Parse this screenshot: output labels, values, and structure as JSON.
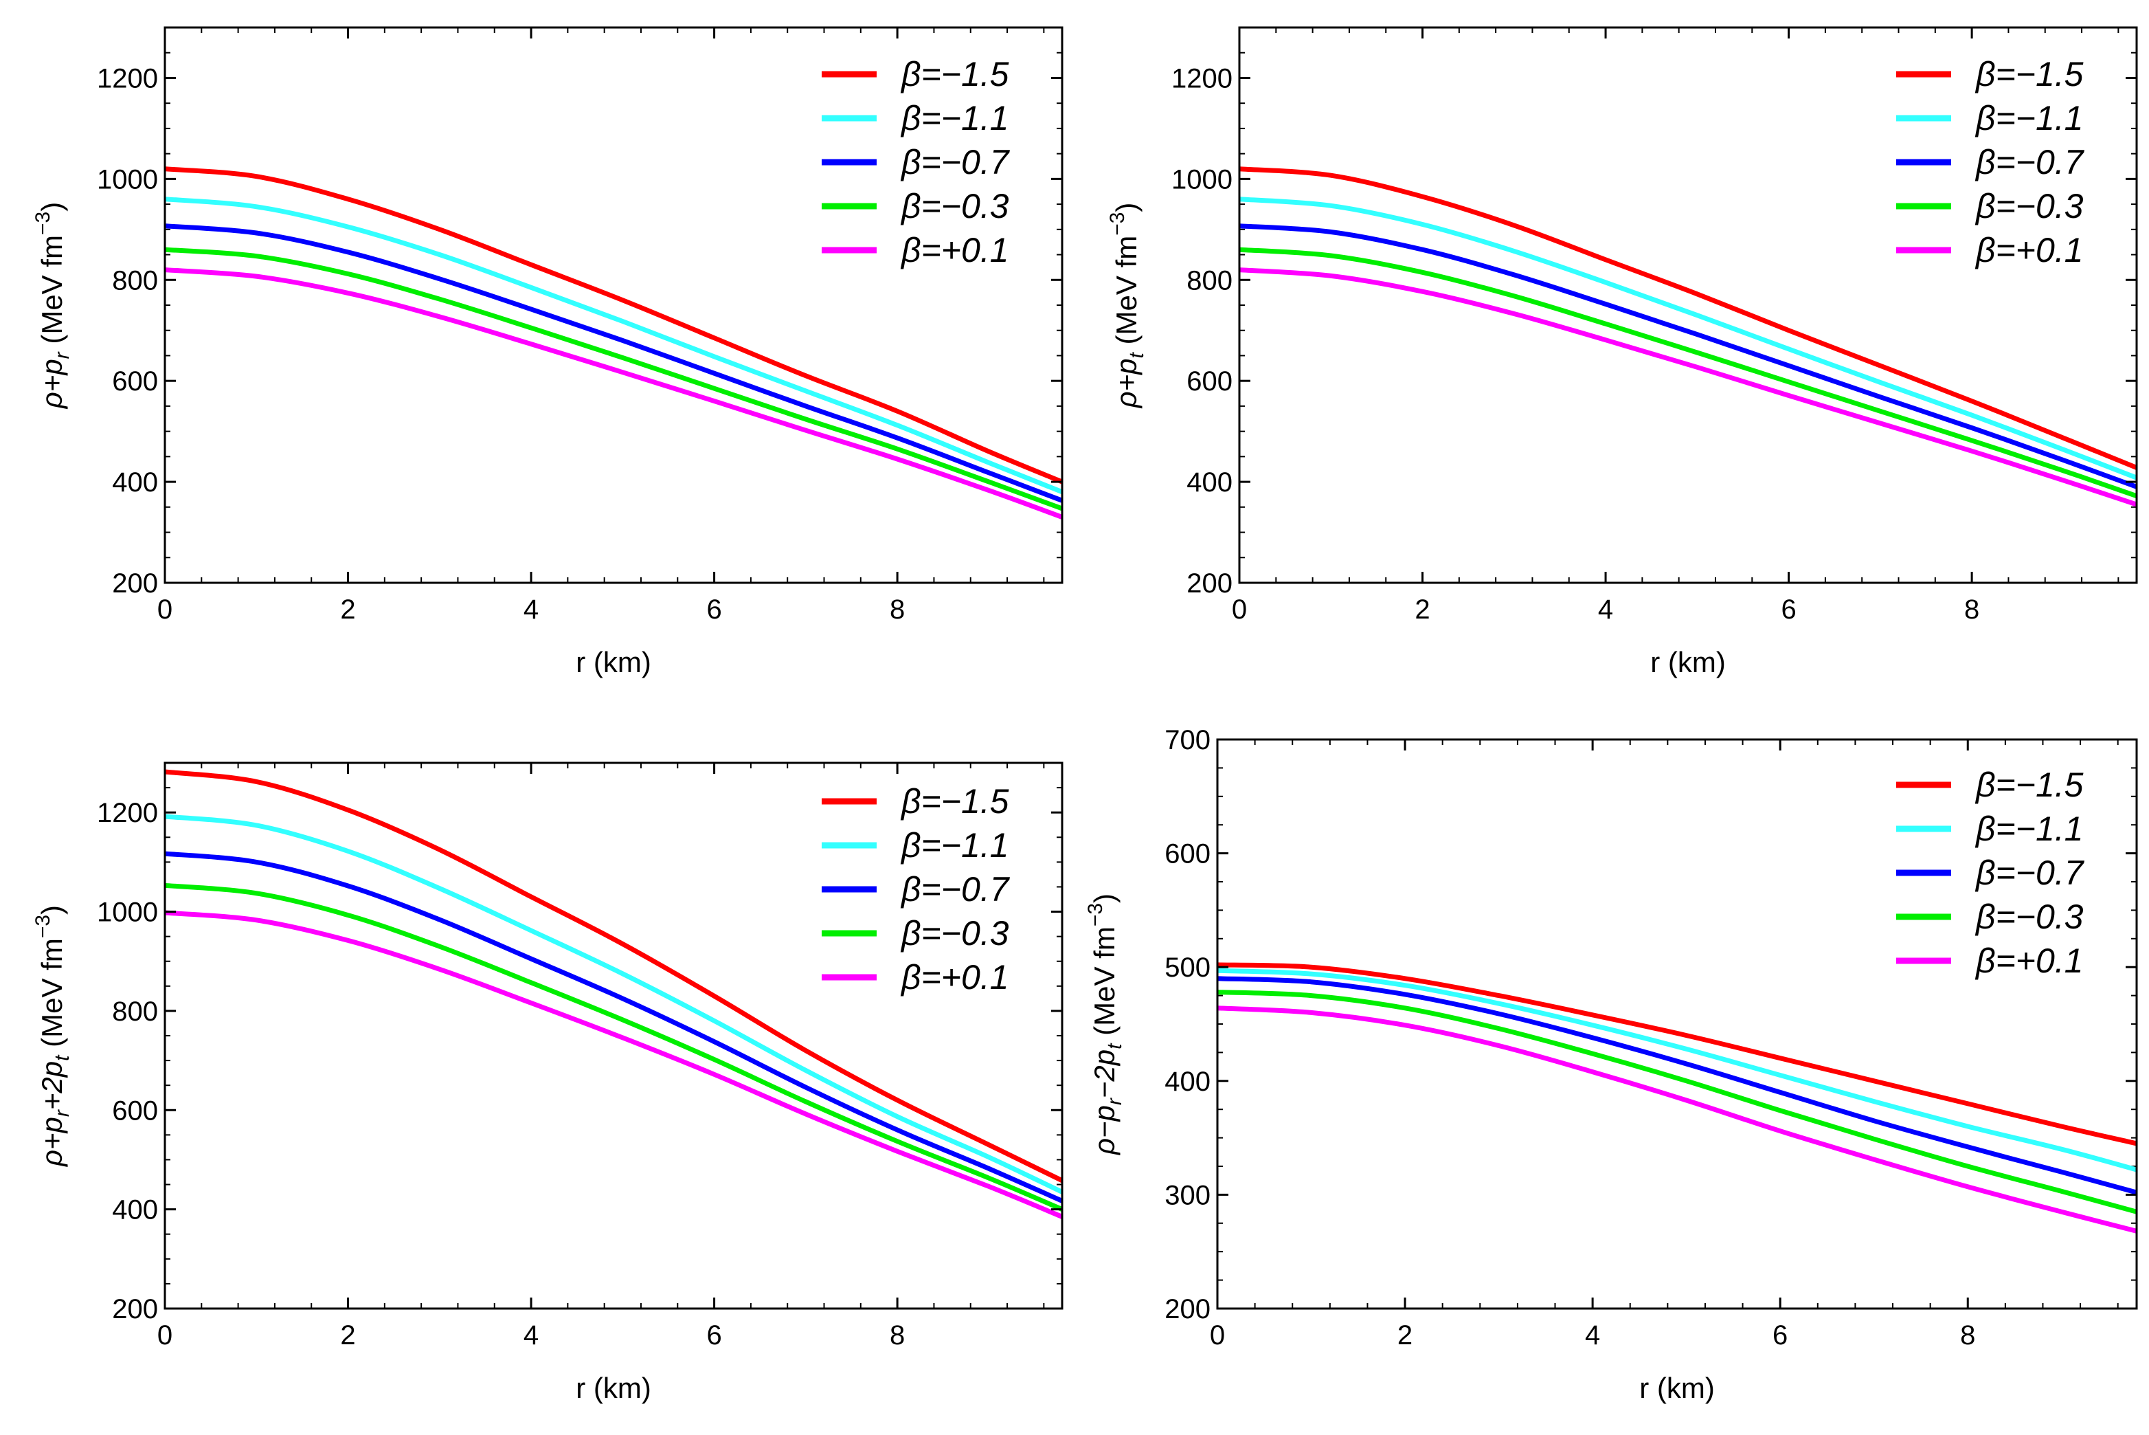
{
  "legend_labels": [
    "β=−1.5",
    "β=−1.1",
    "β=−0.7",
    "β=−0.3",
    "β=+0.1"
  ],
  "series_colors": [
    "#ff0000",
    "#33ffff",
    "#0000ff",
    "#00ee00",
    "#ff00ff"
  ],
  "chart_data": [
    {
      "type": "line",
      "title": "",
      "xlabel": "r (km)",
      "ylabel": "ρ+pr (MeV fm−3)",
      "ylabel_parts": [
        "ρ+p",
        "r",
        " (MeV fm",
        "−3",
        ")"
      ],
      "xlim": [
        0,
        9.8
      ],
      "ylim": [
        200,
        1300
      ],
      "xticks": [
        0,
        2,
        4,
        6,
        8
      ],
      "yticks": [
        200,
        400,
        600,
        800,
        1000,
        1200
      ],
      "legend_position": "top-right",
      "series": [
        {
          "name": "β=−1.5",
          "x": [
            0,
            1,
            2,
            3,
            4,
            5,
            6,
            7,
            8,
            9,
            9.8
          ],
          "values": [
            1020,
            1005,
            960,
            900,
            830,
            760,
            685,
            610,
            540,
            460,
            400
          ]
        },
        {
          "name": "β=−1.1",
          "x": [
            0,
            1,
            2,
            3,
            4,
            5,
            6,
            7,
            8,
            9,
            9.8
          ],
          "values": [
            960,
            945,
            905,
            850,
            785,
            718,
            648,
            580,
            512,
            438,
            380
          ]
        },
        {
          "name": "β=−0.7",
          "x": [
            0,
            1,
            2,
            3,
            4,
            5,
            6,
            7,
            8,
            9,
            9.8
          ],
          "values": [
            907,
            893,
            855,
            802,
            742,
            680,
            615,
            550,
            487,
            418,
            363
          ]
        },
        {
          "name": "β=−0.3",
          "x": [
            0,
            1,
            2,
            3,
            4,
            5,
            6,
            7,
            8,
            9,
            9.8
          ],
          "values": [
            860,
            847,
            812,
            762,
            705,
            646,
            585,
            524,
            465,
            400,
            347
          ]
        },
        {
          "name": "β=+0.1",
          "x": [
            0,
            1,
            2,
            3,
            4,
            5,
            6,
            7,
            8,
            9,
            9.8
          ],
          "values": [
            820,
            807,
            774,
            727,
            673,
            617,
            560,
            502,
            445,
            383,
            330
          ]
        }
      ]
    },
    {
      "type": "line",
      "title": "",
      "xlabel": "r (km)",
      "ylabel": "ρ+pt (MeV fm−3)",
      "ylabel_parts": [
        "ρ+p",
        "t",
        " (MeV fm",
        "−3",
        ")"
      ],
      "xlim": [
        0,
        9.8
      ],
      "ylim": [
        200,
        1300
      ],
      "xticks": [
        0,
        2,
        4,
        6,
        8
      ],
      "yticks": [
        200,
        400,
        600,
        800,
        1000,
        1200
      ],
      "legend_position": "top-right",
      "series": [
        {
          "name": "β=−1.5",
          "x": [
            0,
            1,
            2,
            3,
            4,
            5,
            6,
            7,
            8,
            9,
            9.8
          ],
          "values": [
            1020,
            1007,
            965,
            908,
            840,
            772,
            700,
            630,
            560,
            487,
            428
          ]
        },
        {
          "name": "β=−1.1",
          "x": [
            0,
            1,
            2,
            3,
            4,
            5,
            6,
            7,
            8,
            9,
            9.8
          ],
          "values": [
            960,
            947,
            910,
            857,
            795,
            730,
            663,
            597,
            532,
            464,
            408
          ]
        },
        {
          "name": "β=−0.7",
          "x": [
            0,
            1,
            2,
            3,
            4,
            5,
            6,
            7,
            8,
            9,
            9.8
          ],
          "values": [
            907,
            895,
            860,
            810,
            752,
            692,
            630,
            568,
            507,
            443,
            390
          ]
        },
        {
          "name": "β=−0.3",
          "x": [
            0,
            1,
            2,
            3,
            4,
            5,
            6,
            7,
            8,
            9,
            9.8
          ],
          "values": [
            860,
            848,
            815,
            768,
            713,
            656,
            598,
            540,
            482,
            422,
            372
          ]
        },
        {
          "name": "β=+0.1",
          "x": [
            0,
            1,
            2,
            3,
            4,
            5,
            6,
            7,
            8,
            9,
            9.8
          ],
          "values": [
            820,
            808,
            777,
            733,
            681,
            627,
            571,
            516,
            461,
            403,
            355
          ]
        }
      ]
    },
    {
      "type": "line",
      "title": "",
      "xlabel": "r (km)",
      "ylabel": "ρ+pr+2pt (MeV fm−3)",
      "ylabel_parts": [
        "ρ+p",
        "r",
        "+2p",
        "t",
        " (MeV fm",
        "−3",
        ")"
      ],
      "xlim": [
        0,
        9.8
      ],
      "ylim": [
        200,
        1300
      ],
      "xticks": [
        0,
        2,
        4,
        6,
        8
      ],
      "yticks": [
        200,
        400,
        600,
        800,
        1000,
        1200
      ],
      "legend_position": "top-right",
      "series": [
        {
          "name": "β=−1.5",
          "x": [
            0,
            1,
            2,
            3,
            4,
            5,
            6,
            7,
            8,
            9,
            9.8
          ],
          "values": [
            1282,
            1262,
            1205,
            1125,
            1030,
            935,
            830,
            720,
            620,
            530,
            458
          ]
        },
        {
          "name": "β=−1.1",
          "x": [
            0,
            1,
            2,
            3,
            4,
            5,
            6,
            7,
            8,
            9,
            9.8
          ],
          "values": [
            1192,
            1174,
            1122,
            1047,
            962,
            875,
            780,
            680,
            587,
            505,
            435
          ]
        },
        {
          "name": "β=−0.7",
          "x": [
            0,
            1,
            2,
            3,
            4,
            5,
            6,
            7,
            8,
            9,
            9.8
          ],
          "values": [
            1117,
            1100,
            1052,
            984,
            905,
            825,
            738,
            646,
            560,
            482,
            417
          ]
        },
        {
          "name": "β=−0.3",
          "x": [
            0,
            1,
            2,
            3,
            4,
            5,
            6,
            7,
            8,
            9,
            9.8
          ],
          "values": [
            1053,
            1037,
            993,
            930,
            857,
            782,
            702,
            617,
            537,
            463,
            400
          ]
        },
        {
          "name": "β=+0.1",
          "x": [
            0,
            1,
            2,
            3,
            4,
            5,
            6,
            7,
            8,
            9,
            9.8
          ],
          "values": [
            998,
            983,
            942,
            884,
            816,
            746,
            672,
            592,
            517,
            446,
            385
          ]
        }
      ]
    },
    {
      "type": "line",
      "title": "",
      "xlabel": "r (km)",
      "ylabel": "ρ−pr−2pt (MeV fm−3)",
      "ylabel_parts": [
        "ρ−p",
        "r",
        "−2p",
        "t",
        " (MeV fm",
        "−3",
        ")"
      ],
      "xlim": [
        0,
        9.8
      ],
      "ylim": [
        200,
        700
      ],
      "xticks": [
        0,
        2,
        4,
        6,
        8
      ],
      "yticks": [
        200,
        300,
        400,
        500,
        600,
        700
      ],
      "legend_position": "top-right",
      "series": [
        {
          "name": "β=−1.5",
          "x": [
            0,
            1,
            2,
            3,
            4,
            5,
            6,
            7,
            8,
            9,
            9.8
          ],
          "values": [
            502,
            500,
            490,
            475,
            458,
            440,
            420,
            400,
            380,
            360,
            345
          ]
        },
        {
          "name": "β=−1.1",
          "x": [
            0,
            1,
            2,
            3,
            4,
            5,
            6,
            7,
            8,
            9,
            9.8
          ],
          "values": [
            497,
            494,
            484,
            468,
            449,
            428,
            405,
            382,
            360,
            340,
            322
          ]
        },
        {
          "name": "β=−0.7",
          "x": [
            0,
            1,
            2,
            3,
            4,
            5,
            6,
            7,
            8,
            9,
            9.8
          ],
          "values": [
            490,
            487,
            476,
            459,
            438,
            415,
            390,
            365,
            342,
            320,
            302
          ]
        },
        {
          "name": "β=−0.3",
          "x": [
            0,
            1,
            2,
            3,
            4,
            5,
            6,
            7,
            8,
            9,
            9.8
          ],
          "values": [
            478,
            475,
            464,
            446,
            424,
            400,
            374,
            349,
            325,
            303,
            285
          ]
        },
        {
          "name": "β=+0.1",
          "x": [
            0,
            1,
            2,
            3,
            4,
            5,
            6,
            7,
            8,
            9,
            9.8
          ],
          "values": [
            464,
            460,
            449,
            431,
            408,
            383,
            356,
            331,
            307,
            285,
            268
          ]
        }
      ]
    }
  ]
}
